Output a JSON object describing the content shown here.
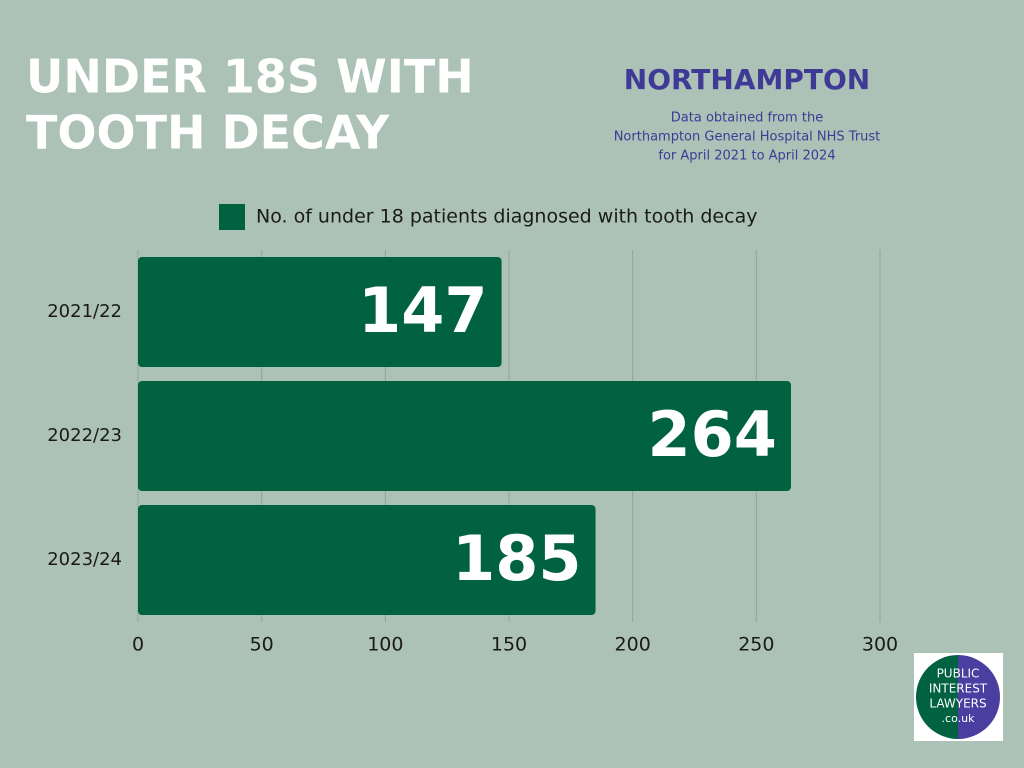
{
  "chart_data": {
    "type": "hbar",
    "title": [
      "UNDER 18S WITH",
      "TOOTH DECAY"
    ],
    "region": "NORTHAMPTON",
    "subtitle": [
      "Data obtained from the",
      "Northampton General Hospital NHS Trust",
      "for April 2021 to April 2024"
    ],
    "categories": [
      "2021/22",
      "2022/23",
      "2023/24"
    ],
    "series": [
      {
        "name": "No. of under 18 patients diagnosed with tooth decay",
        "color": "#006241",
        "values": [
          147,
          264,
          185
        ]
      }
    ],
    "xlim": [
      0,
      300
    ],
    "xticks": [
      0,
      50,
      100,
      150,
      200,
      250,
      300
    ],
    "grid": true
  },
  "logo": {
    "lines": [
      "PUBLIC",
      "INTEREST",
      "LAWYERS",
      ".co.uk"
    ]
  }
}
